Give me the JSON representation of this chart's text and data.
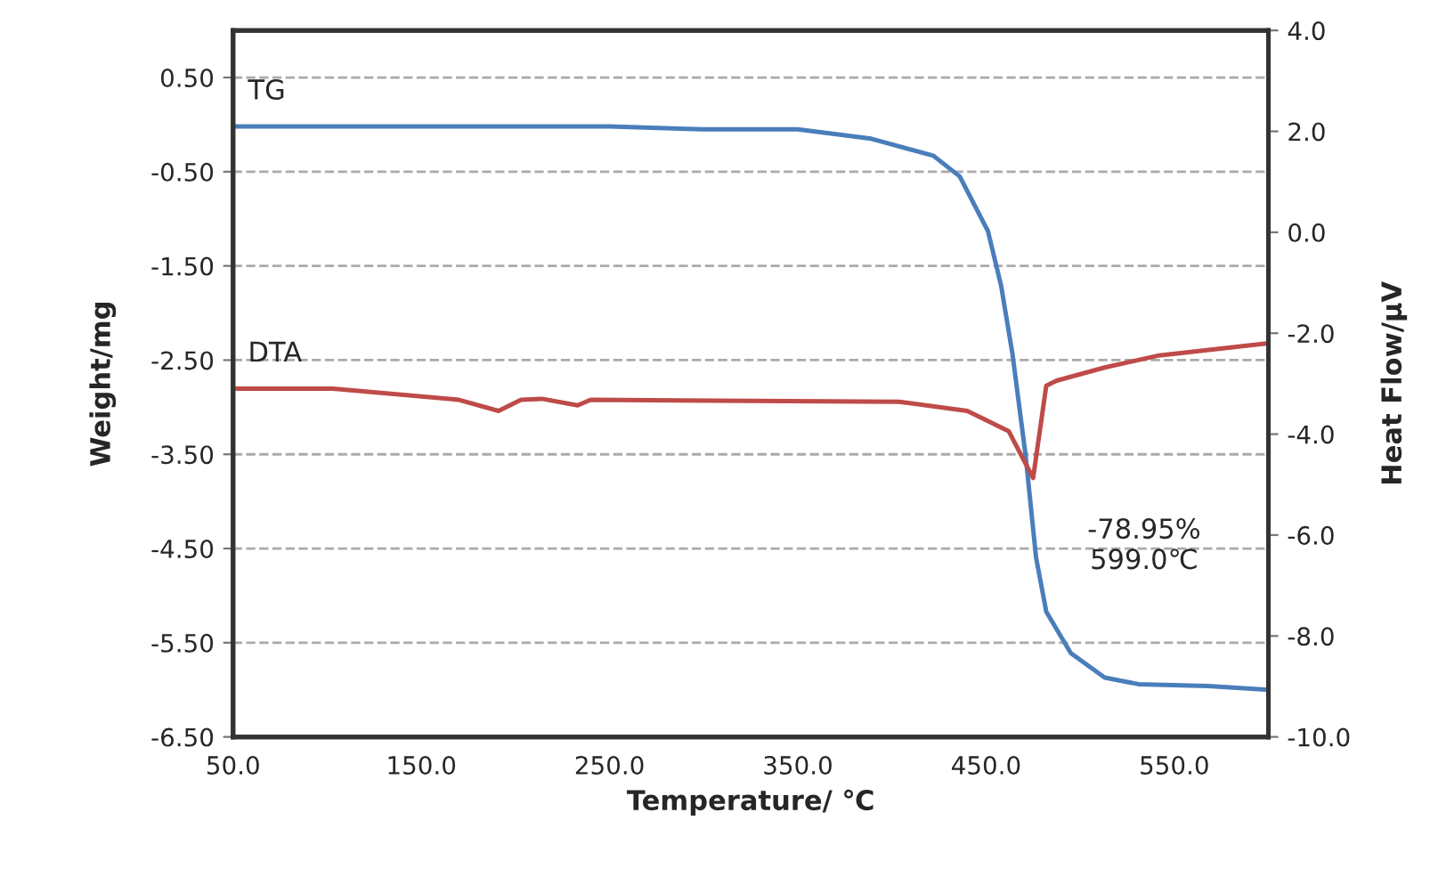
{
  "chart_data": {
    "type": "line",
    "xlabel": "Temperature/ ℃",
    "ylabel": "Weight/mg",
    "y2label": "Heat Flow/μV",
    "xlim": [
      50,
      600
    ],
    "xticks": [
      {
        "value": 50,
        "label": "50.0"
      },
      {
        "value": 150,
        "label": "150.0"
      },
      {
        "value": 250,
        "label": "250.0"
      },
      {
        "value": 350,
        "label": "350.0"
      },
      {
        "value": 450,
        "label": "450.0"
      },
      {
        "value": 550,
        "label": "550.0"
      }
    ],
    "ylim": [
      -6.5,
      1.0
    ],
    "yticks": [
      {
        "value": -6.5,
        "label": "-6.50"
      },
      {
        "value": -5.5,
        "label": "-5.50"
      },
      {
        "value": -4.5,
        "label": "-4.50"
      },
      {
        "value": -3.5,
        "label": "-3.50"
      },
      {
        "value": -2.5,
        "label": "-2.50"
      },
      {
        "value": -1.5,
        "label": "-1.50"
      },
      {
        "value": -0.5,
        "label": "-0.50"
      },
      {
        "value": 0.5,
        "label": "0.50"
      }
    ],
    "y2lim": [
      -10,
      4
    ],
    "y2ticks": [
      {
        "value": -10,
        "label": "-10.0"
      },
      {
        "value": -8,
        "label": "-8.0"
      },
      {
        "value": -6,
        "label": "-6.0"
      },
      {
        "value": -4,
        "label": "-4.0"
      },
      {
        "value": -2,
        "label": "-2.0"
      },
      {
        "value": 0,
        "label": "0.0"
      },
      {
        "value": 2,
        "label": "2.0"
      },
      {
        "value": 4,
        "label": "4.0"
      }
    ],
    "grid": "y",
    "legend": false,
    "marker": "none",
    "line_style": "solid",
    "series": [
      {
        "name": "TG",
        "color": "#4a7ebb",
        "x": [
          50,
          150,
          250,
          300,
          350,
          389,
          422,
          436,
          451,
          458,
          464,
          471,
          476.6,
          482,
          495,
          513,
          531,
          568,
          600
        ],
        "values": [
          -0.02,
          -0.02,
          -0.02,
          -0.05,
          -0.05,
          -0.15,
          -0.33,
          -0.55,
          -1.13,
          -1.71,
          -2.43,
          -3.51,
          -4.6,
          -5.17,
          -5.61,
          -5.87,
          -5.94,
          -5.96,
          -6.0
        ]
      },
      {
        "name": "DTA",
        "color": "#be4b48",
        "axis": "y2",
        "x": [
          50,
          103,
          170,
          191,
          203,
          214,
          233,
          240,
          404,
          440,
          462,
          475,
          482,
          487.5,
          513,
          542,
          600
        ],
        "values": [
          -3.1,
          -3.1,
          -3.32,
          -3.54,
          -3.32,
          -3.3,
          -3.43,
          -3.32,
          -3.36,
          -3.54,
          -3.94,
          -4.87,
          -3.04,
          -2.94,
          -2.68,
          -2.44,
          -2.2
        ]
      }
    ],
    "annotations": [
      "-78.95%\n599.0℃"
    ]
  }
}
